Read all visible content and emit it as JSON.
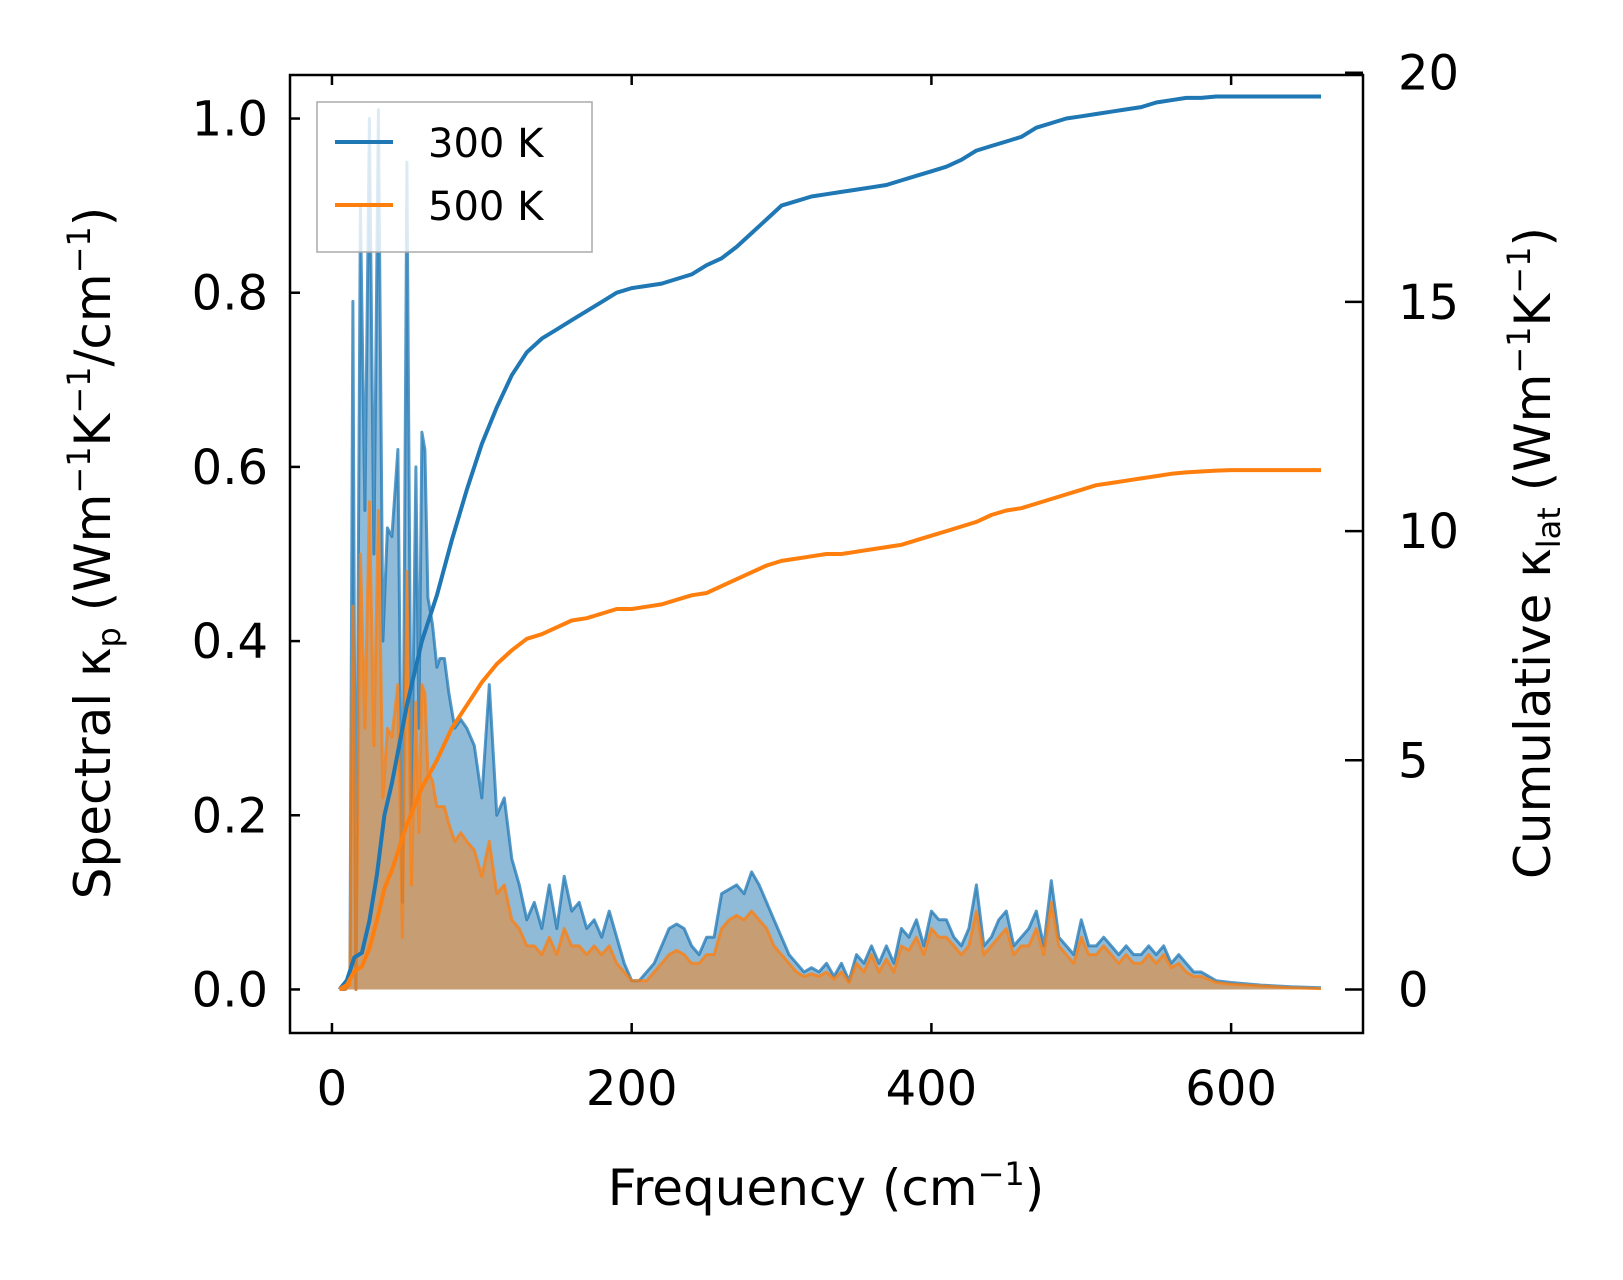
{
  "chart_data": {
    "type": "line",
    "title": "",
    "xlabel": {
      "main": "Frequency (cm",
      "sup": "−1",
      "end": ")"
    },
    "ylabel_left": {
      "main": "Spectral κ",
      "sub": "p",
      "open": " (Wm",
      "sup1": "−1",
      "mid1": "K",
      "sup2": "−1",
      "mid2": "/cm",
      "sup3": "−1",
      "end": ")"
    },
    "ylabel_right": {
      "main": "Cumulative κ",
      "sub": "lat",
      "open": " (Wm",
      "sup1": "−1",
      "mid1": "K",
      "sup2": "−1",
      "end": ")"
    },
    "xlim": [
      -28,
      688
    ],
    "ylim_left": [
      -0.05,
      1.05
    ],
    "ylim_right": [
      -0.95,
      19.95
    ],
    "x_ticks": [
      0,
      200,
      400,
      600
    ],
    "x_tick_labels": [
      "0",
      "200",
      "400",
      "600"
    ],
    "y_left_ticks": [
      0.0,
      0.2,
      0.4,
      0.6,
      0.8,
      1.0
    ],
    "y_left_tick_labels": [
      "0.0",
      "0.2",
      "0.4",
      "0.6",
      "0.8",
      "1.0"
    ],
    "y_right_ticks": [
      0,
      5,
      10,
      15,
      20
    ],
    "y_right_tick_labels": [
      "0",
      "5",
      "10",
      "15",
      "20"
    ],
    "legend": {
      "position": "top-left",
      "entries": [
        "300 K",
        "500 K"
      ]
    },
    "spectral_series": [
      {
        "name": "300 K",
        "color": "#1f77b4",
        "fill_opacity": 0.5,
        "x": [
          5,
          9,
          12,
          14,
          16,
          19,
          22,
          25,
          28,
          31,
          34,
          37,
          40,
          44,
          47,
          50,
          53,
          56,
          58,
          60,
          62,
          64,
          67,
          70,
          72,
          75,
          78,
          82,
          86,
          90,
          95,
          100,
          105,
          110,
          115,
          120,
          125,
          130,
          135,
          140,
          145,
          150,
          155,
          160,
          165,
          170,
          175,
          180,
          185,
          190,
          195,
          200,
          205,
          210,
          215,
          220,
          225,
          230,
          235,
          240,
          245,
          250,
          255,
          260,
          265,
          270,
          275,
          280,
          285,
          290,
          295,
          300,
          305,
          310,
          315,
          320,
          325,
          330,
          335,
          340,
          345,
          350,
          355,
          360,
          365,
          370,
          375,
          380,
          385,
          390,
          395,
          400,
          405,
          410,
          415,
          420,
          425,
          430,
          435,
          440,
          445,
          450,
          455,
          460,
          465,
          470,
          475,
          480,
          485,
          490,
          495,
          500,
          505,
          510,
          515,
          520,
          525,
          530,
          535,
          540,
          545,
          550,
          555,
          560,
          565,
          570,
          575,
          580,
          590,
          600,
          620,
          640,
          660
        ],
        "y": [
          0.0,
          0.0,
          0.01,
          0.79,
          0.0,
          0.9,
          0.55,
          1.0,
          0.5,
          1.01,
          0.4,
          0.53,
          0.52,
          0.62,
          0.1,
          0.95,
          0.2,
          0.6,
          0.3,
          0.64,
          0.62,
          0.45,
          0.42,
          0.37,
          0.38,
          0.38,
          0.34,
          0.3,
          0.31,
          0.3,
          0.28,
          0.22,
          0.35,
          0.2,
          0.22,
          0.15,
          0.12,
          0.08,
          0.1,
          0.07,
          0.12,
          0.07,
          0.13,
          0.09,
          0.1,
          0.07,
          0.08,
          0.06,
          0.09,
          0.06,
          0.03,
          0.01,
          0.01,
          0.02,
          0.03,
          0.05,
          0.07,
          0.075,
          0.07,
          0.05,
          0.04,
          0.06,
          0.06,
          0.11,
          0.115,
          0.12,
          0.11,
          0.135,
          0.12,
          0.1,
          0.08,
          0.06,
          0.04,
          0.03,
          0.02,
          0.025,
          0.02,
          0.03,
          0.015,
          0.03,
          0.01,
          0.04,
          0.03,
          0.05,
          0.03,
          0.05,
          0.03,
          0.07,
          0.06,
          0.08,
          0.05,
          0.09,
          0.08,
          0.08,
          0.06,
          0.05,
          0.07,
          0.12,
          0.05,
          0.06,
          0.08,
          0.09,
          0.05,
          0.06,
          0.07,
          0.09,
          0.05,
          0.125,
          0.06,
          0.05,
          0.04,
          0.08,
          0.05,
          0.05,
          0.06,
          0.05,
          0.04,
          0.05,
          0.04,
          0.04,
          0.05,
          0.04,
          0.05,
          0.03,
          0.04,
          0.03,
          0.02,
          0.02,
          0.01,
          0.008,
          0.005,
          0.003,
          0.002
        ]
      },
      {
        "name": "500 K",
        "color": "#ff7f0e",
        "fill_opacity": 0.5,
        "x": [
          5,
          9,
          12,
          14,
          16,
          19,
          22,
          25,
          28,
          31,
          34,
          37,
          40,
          44,
          47,
          50,
          53,
          56,
          58,
          60,
          62,
          64,
          67,
          70,
          72,
          75,
          78,
          82,
          86,
          90,
          95,
          100,
          105,
          110,
          115,
          120,
          125,
          130,
          135,
          140,
          145,
          150,
          155,
          160,
          165,
          170,
          175,
          180,
          185,
          190,
          195,
          200,
          205,
          210,
          215,
          220,
          225,
          230,
          235,
          240,
          245,
          250,
          255,
          260,
          265,
          270,
          275,
          280,
          285,
          290,
          295,
          300,
          305,
          310,
          315,
          320,
          325,
          330,
          335,
          340,
          345,
          350,
          355,
          360,
          365,
          370,
          375,
          380,
          385,
          390,
          395,
          400,
          405,
          410,
          415,
          420,
          425,
          430,
          435,
          440,
          445,
          450,
          455,
          460,
          465,
          470,
          475,
          480,
          485,
          490,
          495,
          500,
          505,
          510,
          515,
          520,
          525,
          530,
          535,
          540,
          545,
          550,
          555,
          560,
          565,
          570,
          575,
          580,
          590,
          600,
          620,
          640,
          660
        ],
        "y": [
          0.0,
          0.0,
          0.005,
          0.44,
          0.0,
          0.5,
          0.3,
          0.56,
          0.28,
          0.55,
          0.22,
          0.3,
          0.29,
          0.35,
          0.06,
          0.48,
          0.12,
          0.33,
          0.18,
          0.35,
          0.34,
          0.25,
          0.24,
          0.21,
          0.21,
          0.21,
          0.19,
          0.17,
          0.18,
          0.17,
          0.16,
          0.13,
          0.17,
          0.11,
          0.12,
          0.08,
          0.07,
          0.05,
          0.05,
          0.04,
          0.06,
          0.04,
          0.07,
          0.05,
          0.05,
          0.04,
          0.05,
          0.04,
          0.05,
          0.03,
          0.02,
          0.01,
          0.01,
          0.01,
          0.02,
          0.03,
          0.04,
          0.045,
          0.04,
          0.03,
          0.03,
          0.04,
          0.04,
          0.07,
          0.08,
          0.085,
          0.08,
          0.09,
          0.08,
          0.07,
          0.05,
          0.04,
          0.03,
          0.02,
          0.015,
          0.018,
          0.015,
          0.02,
          0.012,
          0.02,
          0.008,
          0.03,
          0.02,
          0.04,
          0.02,
          0.035,
          0.02,
          0.05,
          0.045,
          0.06,
          0.04,
          0.07,
          0.06,
          0.06,
          0.05,
          0.04,
          0.05,
          0.09,
          0.04,
          0.05,
          0.06,
          0.07,
          0.04,
          0.05,
          0.05,
          0.07,
          0.04,
          0.1,
          0.05,
          0.04,
          0.03,
          0.06,
          0.04,
          0.04,
          0.05,
          0.04,
          0.03,
          0.04,
          0.03,
          0.03,
          0.04,
          0.03,
          0.04,
          0.025,
          0.03,
          0.02,
          0.015,
          0.015,
          0.008,
          0.006,
          0.004,
          0.002,
          0.001
        ]
      }
    ],
    "cumulative_series": [
      {
        "name": "300 K",
        "color": "#1f77b4",
        "x": [
          5,
          10,
          15,
          20,
          25,
          30,
          35,
          40,
          50,
          60,
          70,
          80,
          90,
          100,
          110,
          120,
          130,
          140,
          150,
          160,
          170,
          180,
          190,
          200,
          210,
          220,
          230,
          240,
          250,
          260,
          270,
          280,
          290,
          300,
          310,
          320,
          330,
          340,
          350,
          360,
          370,
          380,
          390,
          400,
          410,
          420,
          430,
          440,
          450,
          460,
          470,
          480,
          490,
          500,
          510,
          520,
          530,
          540,
          550,
          560,
          570,
          580,
          590,
          600,
          620,
          640,
          660
        ],
        "y": [
          0.0,
          0.2,
          0.7,
          0.8,
          1.5,
          2.5,
          3.8,
          4.5,
          6.2,
          7.6,
          8.6,
          9.8,
          10.9,
          11.9,
          12.7,
          13.4,
          13.9,
          14.2,
          14.4,
          14.6,
          14.8,
          15.0,
          15.2,
          15.3,
          15.35,
          15.4,
          15.5,
          15.6,
          15.8,
          15.95,
          16.2,
          16.5,
          16.8,
          17.1,
          17.2,
          17.3,
          17.35,
          17.4,
          17.45,
          17.5,
          17.55,
          17.65,
          17.75,
          17.85,
          17.95,
          18.1,
          18.3,
          18.4,
          18.5,
          18.6,
          18.8,
          18.9,
          19.0,
          19.05,
          19.1,
          19.15,
          19.2,
          19.25,
          19.35,
          19.4,
          19.45,
          19.45,
          19.48,
          19.48,
          19.48,
          19.48,
          19.48
        ]
      },
      {
        "name": "500 K",
        "color": "#ff7f0e",
        "x": [
          5,
          10,
          15,
          20,
          25,
          30,
          35,
          40,
          50,
          60,
          70,
          80,
          90,
          100,
          110,
          120,
          130,
          140,
          150,
          160,
          170,
          180,
          190,
          200,
          210,
          220,
          230,
          240,
          250,
          260,
          270,
          280,
          290,
          300,
          310,
          320,
          330,
          340,
          350,
          360,
          370,
          380,
          390,
          400,
          410,
          420,
          430,
          440,
          450,
          460,
          470,
          480,
          490,
          500,
          510,
          520,
          530,
          540,
          550,
          560,
          570,
          580,
          590,
          600,
          620,
          640,
          660
        ],
        "y": [
          0.0,
          0.1,
          0.4,
          0.5,
          0.9,
          1.5,
          2.2,
          2.6,
          3.6,
          4.4,
          5.0,
          5.7,
          6.2,
          6.7,
          7.1,
          7.4,
          7.65,
          7.75,
          7.9,
          8.05,
          8.1,
          8.2,
          8.3,
          8.3,
          8.35,
          8.4,
          8.5,
          8.6,
          8.65,
          8.8,
          8.95,
          9.1,
          9.25,
          9.35,
          9.4,
          9.45,
          9.5,
          9.5,
          9.55,
          9.6,
          9.65,
          9.7,
          9.8,
          9.9,
          10.0,
          10.1,
          10.2,
          10.35,
          10.45,
          10.5,
          10.6,
          10.7,
          10.8,
          10.9,
          11.0,
          11.05,
          11.1,
          11.15,
          11.2,
          11.25,
          11.28,
          11.3,
          11.32,
          11.33,
          11.33,
          11.33,
          11.33
        ]
      }
    ]
  }
}
